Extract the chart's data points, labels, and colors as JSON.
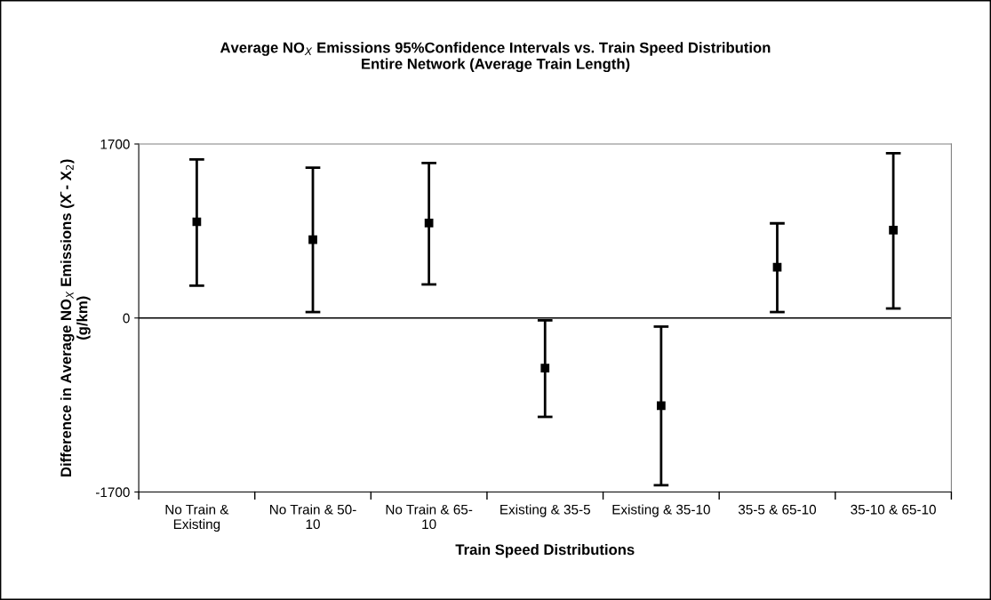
{
  "chart_data": {
    "type": "scatter",
    "title": "Average NO$_{X}$ Emissions 95%Confidence Intervals vs. Train Speed Distribution\nEntire Network (Average Train Length)",
    "xlabel": "Train Speed Distributions",
    "ylabel": "Difference in Average NO$_{X}$ Emissions (X̄ - X$_{2}$)\n(g/km)",
    "categories": [
      "No Train &\nExisting",
      "No Train & 50-\n10",
      "No Train & 65-\n10",
      "Existing & 35-5",
      "Existing & 35-10",
      "35-5 & 65-10",
      "35-10 & 65-10"
    ],
    "series": [
      {
        "color": "#000000",
        "values": [
          940,
          766,
          928,
          -490,
          -856,
          496,
          859
        ],
        "errors": [
          [
            316,
            1549
          ],
          [
            58,
            1468
          ],
          [
            328,
            1514
          ],
          [
            -966,
            -23
          ],
          [
            -1633,
            -84
          ],
          [
            58,
            925
          ],
          [
            93,
            1610
          ]
        ]
      }
    ],
    "ylim": [
      -1700,
      1700
    ],
    "yticks": [
      -1700,
      0,
      1700
    ],
    "ref_lines": [
      {
        "axis": "y",
        "value": 0,
        "color": "#000000"
      }
    ],
    "marker": "square",
    "grid": false,
    "legend": false
  }
}
